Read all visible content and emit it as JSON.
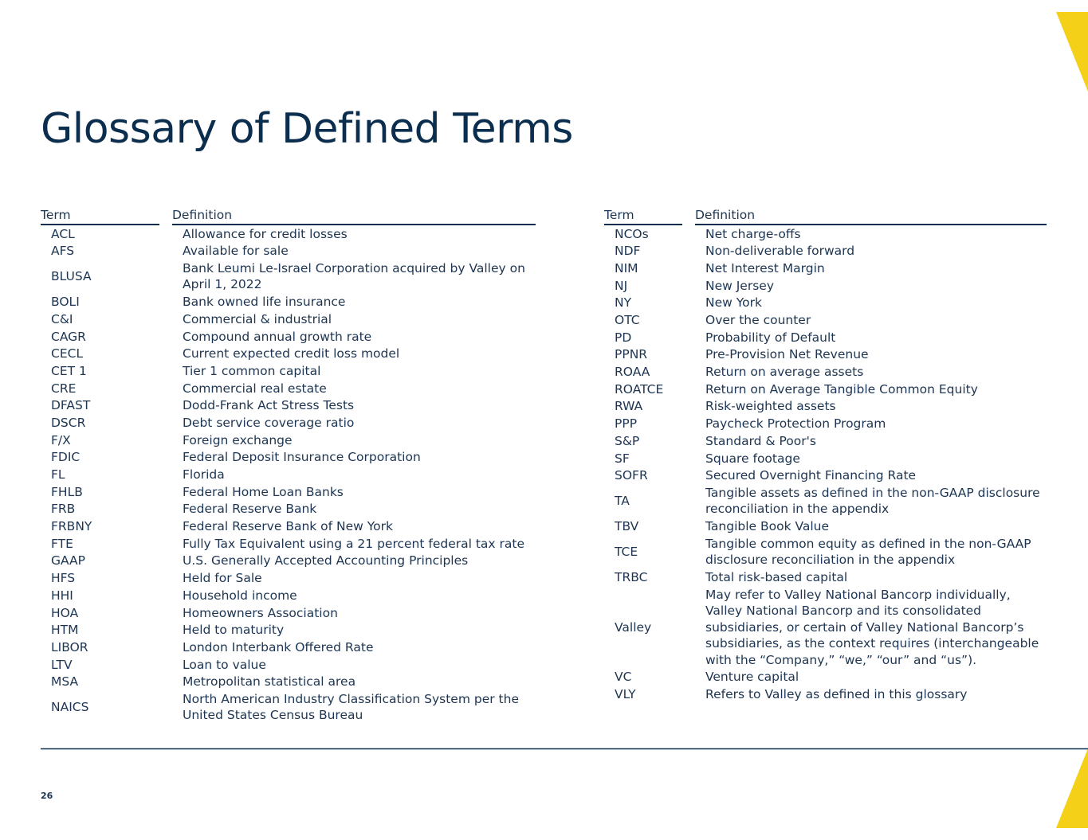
{
  "header": {
    "title": "Glossary of Defined Terms"
  },
  "tables": [
    {
      "columns": [
        "Term",
        "Definition"
      ],
      "rows": [
        [
          "ACL",
          "Allowance for credit losses"
        ],
        [
          "AFS",
          "Available for sale"
        ],
        [
          "BLUSA",
          "Bank Leumi Le-Israel Corporation acquired by Valley on April 1, 2022"
        ],
        [
          "BOLI",
          "Bank owned life insurance"
        ],
        [
          "C&I",
          "Commercial & industrial"
        ],
        [
          "CAGR",
          "Compound annual growth rate"
        ],
        [
          "CECL",
          "Current expected credit loss model"
        ],
        [
          "CET 1",
          "Tier 1 common capital"
        ],
        [
          "CRE",
          "Commercial real estate"
        ],
        [
          "DFAST",
          "Dodd-Frank Act Stress Tests"
        ],
        [
          "DSCR",
          "Debt service coverage ratio"
        ],
        [
          "F/X",
          "Foreign exchange"
        ],
        [
          "FDIC",
          "Federal Deposit Insurance Corporation"
        ],
        [
          "FL",
          "Florida"
        ],
        [
          "FHLB",
          "Federal Home Loan Banks"
        ],
        [
          "FRB",
          "Federal Reserve Bank"
        ],
        [
          "FRBNY",
          "Federal Reserve Bank of New York"
        ],
        [
          "FTE",
          "Fully Tax Equivalent using a 21 percent federal tax rate"
        ],
        [
          "GAAP",
          "U.S. Generally Accepted Accounting Principles"
        ],
        [
          "HFS",
          "Held for Sale"
        ],
        [
          "HHI",
          "Household income"
        ],
        [
          "HOA",
          "Homeowners Association"
        ],
        [
          "HTM",
          "Held to maturity"
        ],
        [
          "LIBOR",
          "London Interbank Offered Rate"
        ],
        [
          "LTV",
          "Loan to value"
        ],
        [
          "MSA",
          "Metropolitan statistical area"
        ],
        [
          "NAICS",
          "North American Industry Classification System per the United States Census Bureau"
        ]
      ]
    },
    {
      "columns": [
        "Term",
        "Definition"
      ],
      "rows": [
        [
          "NCOs",
          "Net charge-offs"
        ],
        [
          "NDF",
          "Non-deliverable forward"
        ],
        [
          "NIM",
          "Net Interest Margin"
        ],
        [
          "NJ",
          "New Jersey"
        ],
        [
          "NY",
          "New York"
        ],
        [
          "OTC",
          "Over the counter"
        ],
        [
          "PD",
          "Probability of Default"
        ],
        [
          "PPNR",
          "Pre-Provision Net Revenue"
        ],
        [
          "ROAA",
          "Return on average assets"
        ],
        [
          "ROATCE",
          "Return on Average Tangible Common Equity"
        ],
        [
          "RWA",
          "Risk-weighted assets"
        ],
        [
          "PPP",
          "Paycheck Protection Program"
        ],
        [
          "S&P",
          "Standard & Poor's"
        ],
        [
          "SF",
          "Square footage"
        ],
        [
          "SOFR",
          "Secured Overnight Financing Rate"
        ],
        [
          "TA",
          "Tangible assets as defined in the non-GAAP disclosure reconciliation in the appendix"
        ],
        [
          "TBV",
          "Tangible Book Value"
        ],
        [
          "TCE",
          "Tangible common equity as defined in the non-GAAP disclosure reconciliation in the appendix"
        ],
        [
          "TRBC",
          "Total risk-based capital"
        ],
        [
          "Valley",
          "May refer to Valley National Bancorp individually, Valley National Bancorp and its consolidated subsidiaries, or certain of Valley National Bancorp’s subsidiaries, as the context requires (interchangeable with the “Company,” “we,” “our” and “us”)."
        ],
        [
          "VC",
          "Venture capital"
        ],
        [
          "VLY",
          "Refers to Valley as defined in this glossary"
        ]
      ]
    }
  ],
  "footer": {
    "page": "26"
  }
}
